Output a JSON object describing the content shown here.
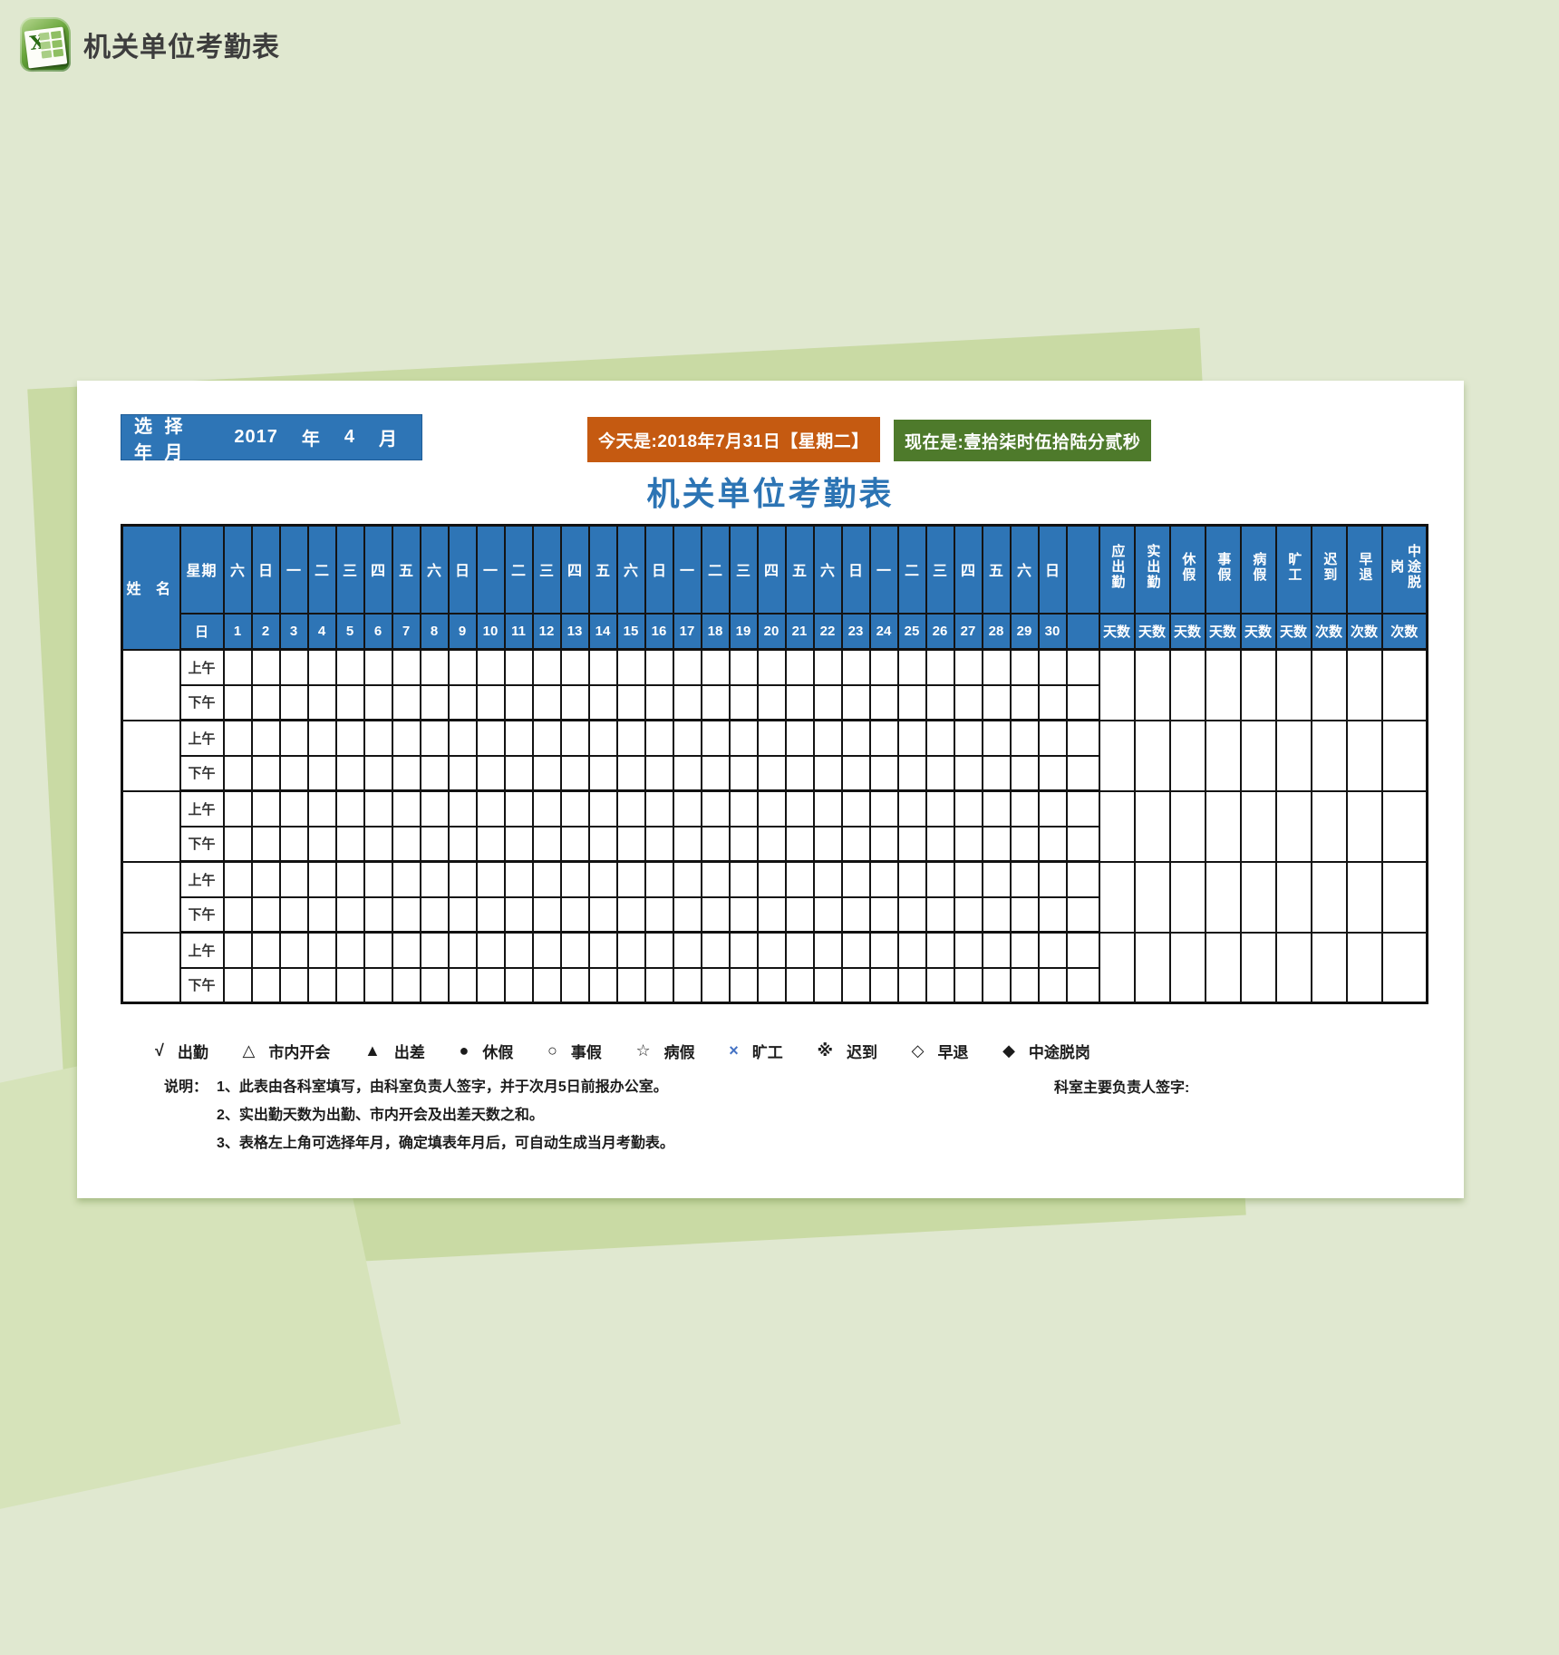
{
  "page": {
    "header_title": "机关单位考勤表"
  },
  "toolbar": {
    "select_label": "选 择 年 月",
    "year": "2017",
    "year_unit": "年",
    "month": "4",
    "month_unit": "月",
    "today": "今天是:2018年7月31日【星期二】",
    "now": "现在是:壹拾柒时伍拾陆分贰秒"
  },
  "sheet": {
    "title": "机关单位考勤表"
  },
  "table": {
    "name_header": "姓 名",
    "week_header": "星期",
    "day_header": "日",
    "weekdays": [
      "六",
      "日",
      "一",
      "二",
      "三",
      "四",
      "五",
      "六",
      "日",
      "一",
      "二",
      "三",
      "四",
      "五",
      "六",
      "日",
      "一",
      "二",
      "三",
      "四",
      "五",
      "六",
      "日",
      "一",
      "二",
      "三",
      "四",
      "五",
      "六",
      "日",
      ""
    ],
    "dates": [
      "1",
      "2",
      "3",
      "4",
      "5",
      "6",
      "7",
      "8",
      "9",
      "10",
      "11",
      "12",
      "13",
      "14",
      "15",
      "16",
      "17",
      "18",
      "19",
      "20",
      "21",
      "22",
      "23",
      "24",
      "25",
      "26",
      "27",
      "28",
      "29",
      "30",
      ""
    ],
    "summary_headers": [
      [
        "应出勤"
      ],
      [
        "实出勤"
      ],
      [
        "休假"
      ],
      [
        "事假"
      ],
      [
        "病假"
      ],
      [
        "旷工"
      ],
      [
        "迟到"
      ],
      [
        "早退"
      ],
      [
        "中途脱",
        "岗"
      ]
    ],
    "summary_units": [
      "天数",
      "天数",
      "天数",
      "天数",
      "天数",
      "天数",
      "次数",
      "次数",
      "次数"
    ],
    "am_label": "上午",
    "pm_label": "下午",
    "row_groups": 5
  },
  "legend": {
    "items": [
      {
        "symbol": "√",
        "label": "出勤"
      },
      {
        "symbol": "△",
        "label": "市内开会"
      },
      {
        "symbol": "▲",
        "label": "出差"
      },
      {
        "symbol": "●",
        "label": "休假"
      },
      {
        "symbol": "○",
        "label": "事假"
      },
      {
        "symbol": "☆",
        "label": "病假"
      },
      {
        "symbol": "×",
        "label": "旷工",
        "color": "#4472c4"
      },
      {
        "symbol": "※",
        "label": "迟到"
      },
      {
        "symbol": "◇",
        "label": "早退"
      },
      {
        "symbol": "◆",
        "label": "中途脱岗"
      }
    ]
  },
  "notes": {
    "prefix": "说明：",
    "lines": [
      "1、此表由各科室填写，由科室负责人签字，并于次月5日前报办公室。",
      "2、实出勤天数为出勤、市内开会及出差天数之和。",
      "3、表格左上角可选择年月，确定填表年月后，可自动生成当月考勤表。"
    ],
    "signature": "科室主要负责人签字:"
  },
  "colors": {
    "header_blue": "#2e75b6",
    "today_orange": "#c55a11",
    "now_green": "#4e7a2b",
    "title_blue": "#2c74b4",
    "page_bg": "#e0e8d0",
    "wedge_green": "#c9daa4"
  }
}
